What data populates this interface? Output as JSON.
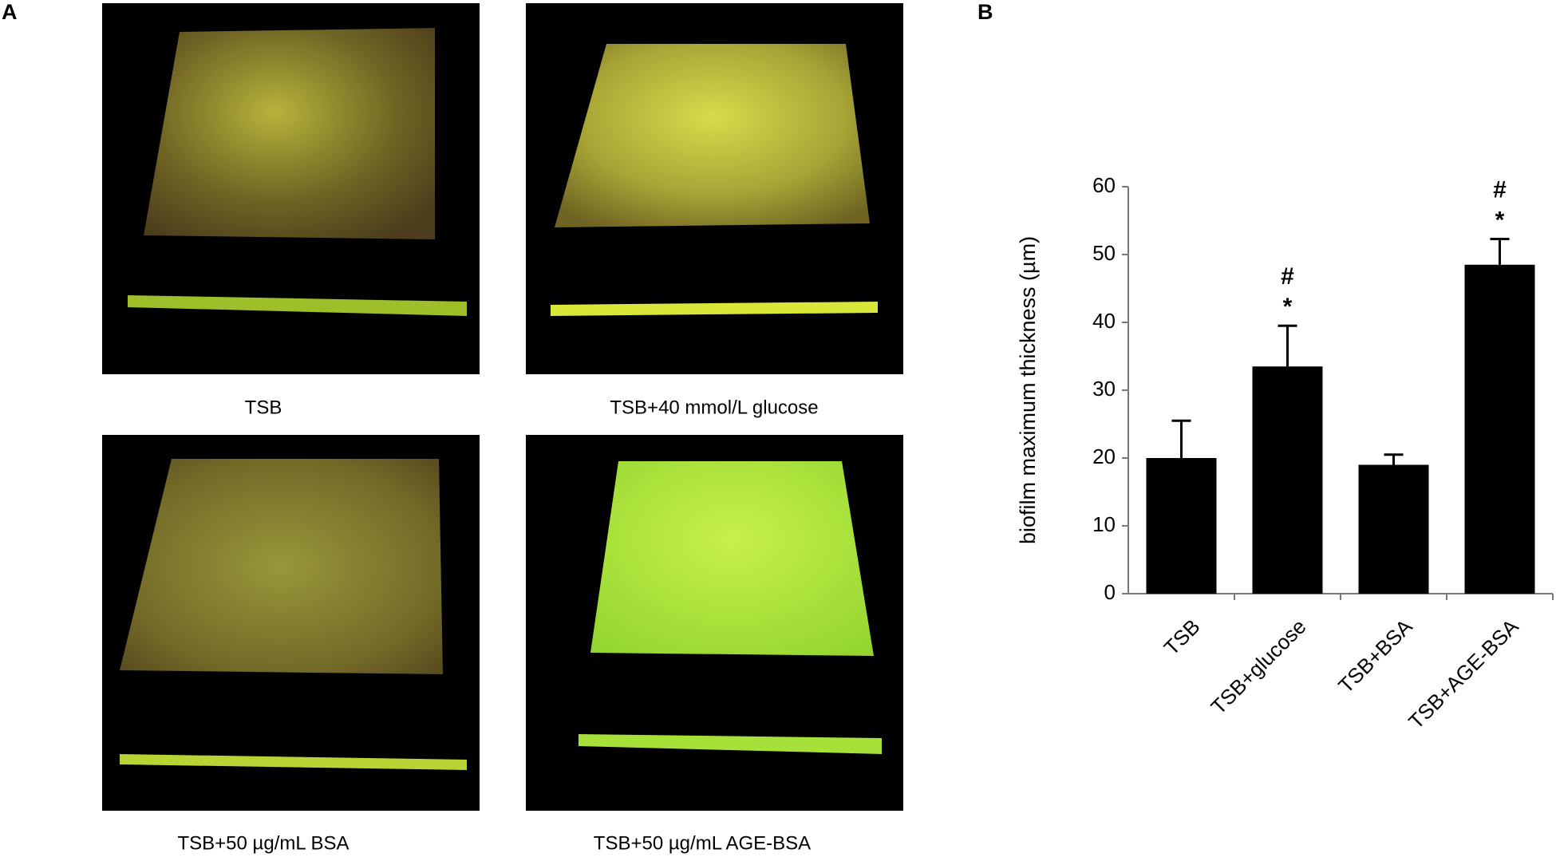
{
  "panel_a": {
    "label": "A",
    "captions": [
      "TSB",
      "TSB+40 mmol/L glucose",
      "TSB+50 µg/mL BSA",
      "TSB+50 µg/mL AGE-BSA"
    ]
  },
  "chart_data": {
    "type": "bar",
    "panel_label": "B",
    "y_label": "biofilm maximum thickness (µm)",
    "categories": [
      "TSB",
      "TSB+glucose",
      "TSB+BSA",
      "TSB+AGE-BSA"
    ],
    "values": [
      20,
      33.5,
      19,
      48.5
    ],
    "errors": [
      5.5,
      6,
      1.5,
      3.8
    ],
    "color": "#000000",
    "ylim": [
      0,
      60
    ],
    "yticks": [
      0,
      10,
      20,
      30,
      40,
      50,
      60
    ],
    "annotations": [
      {
        "category": "TSB+glucose",
        "texts": [
          "*",
          "#"
        ]
      },
      {
        "category": "TSB+AGE-BSA",
        "texts": [
          "*",
          "#"
        ]
      }
    ]
  }
}
